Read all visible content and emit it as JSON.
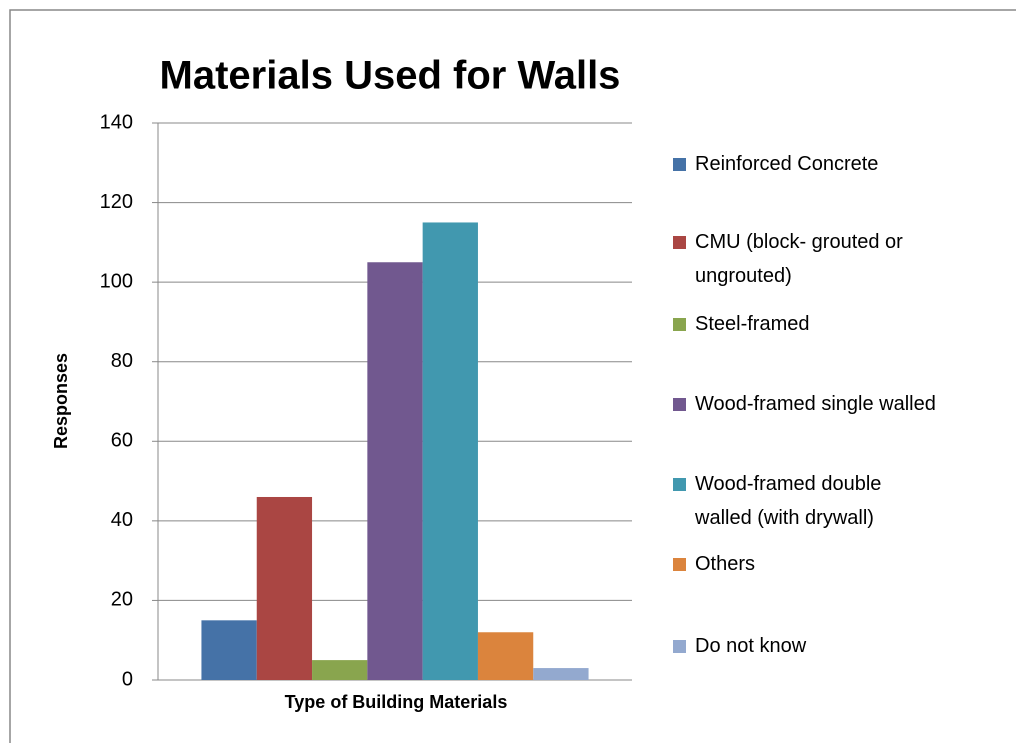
{
  "chart_data": {
    "type": "bar",
    "title": "Materials Used for Walls",
    "x_label": "Type of Building Materials",
    "y_label": "Responses",
    "categories": [
      null
    ],
    "series": [
      {
        "name": "Reinforced Concrete",
        "color": "#4572a7",
        "values": [
          15
        ]
      },
      {
        "name": "CMU (block- grouted or ungrouted)",
        "color": "#aa4643",
        "values": [
          46
        ]
      },
      {
        "name": "Steel-framed",
        "color": "#89a54e",
        "values": [
          5
        ]
      },
      {
        "name": "Wood-framed single walled",
        "color": "#71588f",
        "values": [
          105
        ]
      },
      {
        "name": "Wood-framed double walled (with drywall)",
        "color": "#4198af",
        "values": [
          115
        ]
      },
      {
        "name": "Others",
        "color": "#db843d",
        "values": [
          12
        ]
      },
      {
        "name": "Do not know",
        "color": "#93a9cf",
        "values": [
          3
        ]
      }
    ],
    "ylim": [
      0,
      140
    ],
    "yticks": [
      0,
      20,
      40,
      60,
      80,
      100,
      120,
      140
    ],
    "grid": true,
    "legend": "right"
  }
}
